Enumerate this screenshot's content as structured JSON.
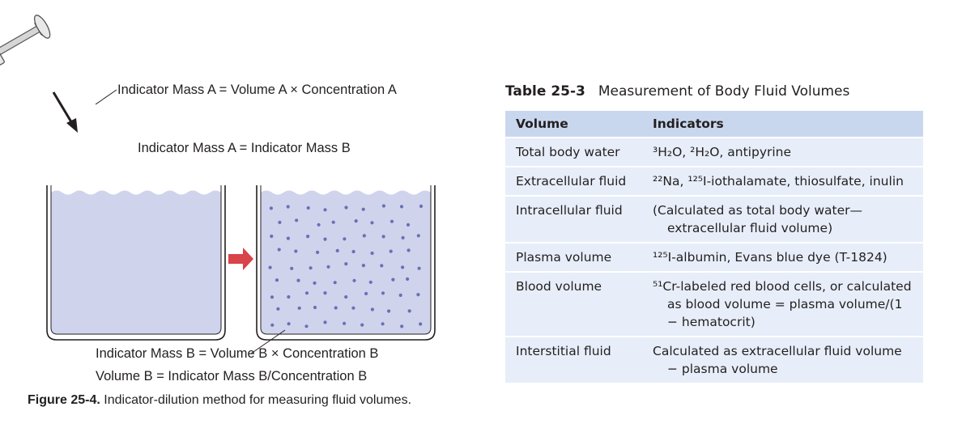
{
  "figure": {
    "labels": {
      "mass_a": "Indicator Mass A = Volume A × Concentration A",
      "mass_equal": "Indicator Mass A = Indicator Mass B",
      "mass_b": "Indicator Mass B = Volume B × Concentration B",
      "volume_b": "Volume B = Indicator Mass B/Concentration B"
    },
    "caption": {
      "number": "Figure 25-4.",
      "text": "Indicator-dilution method for measuring fluid volumes."
    },
    "colors": {
      "fluid": "#cfd3ec",
      "dots": "#6b6fb5",
      "arrow": "#d9434a",
      "syringe_glass": "#dfe3ec"
    }
  },
  "table": {
    "number": "Table 25-3",
    "title": "Measurement of Body Fluid Volumes",
    "headers": [
      "Volume",
      "Indicators"
    ],
    "rows": [
      {
        "volume": "Total body water",
        "indicator": "³H₂O, ²H₂O, antipyrine"
      },
      {
        "volume": "Extracellular fluid",
        "indicator": "²²Na, ¹²⁵I-iothalamate, thiosulfate, inulin"
      },
      {
        "volume": "Intracellular fluid",
        "indicator": "(Calculated as total body water—extracellular fluid volume)"
      },
      {
        "volume": "Plasma volume",
        "indicator": "¹²⁵I-albumin, Evans blue dye (T-1824)"
      },
      {
        "volume": "Blood volume",
        "indicator": "⁵¹Cr-labeled red blood cells, or calculated as blood volume = plasma volume/(1 − hematocrit)"
      },
      {
        "volume": "Interstitial fluid",
        "indicator": "Calculated as extracellular fluid volume − plasma volume"
      }
    ],
    "colors": {
      "header_bg": "#c9d7ee",
      "row_bg": "#e7eef9"
    }
  }
}
